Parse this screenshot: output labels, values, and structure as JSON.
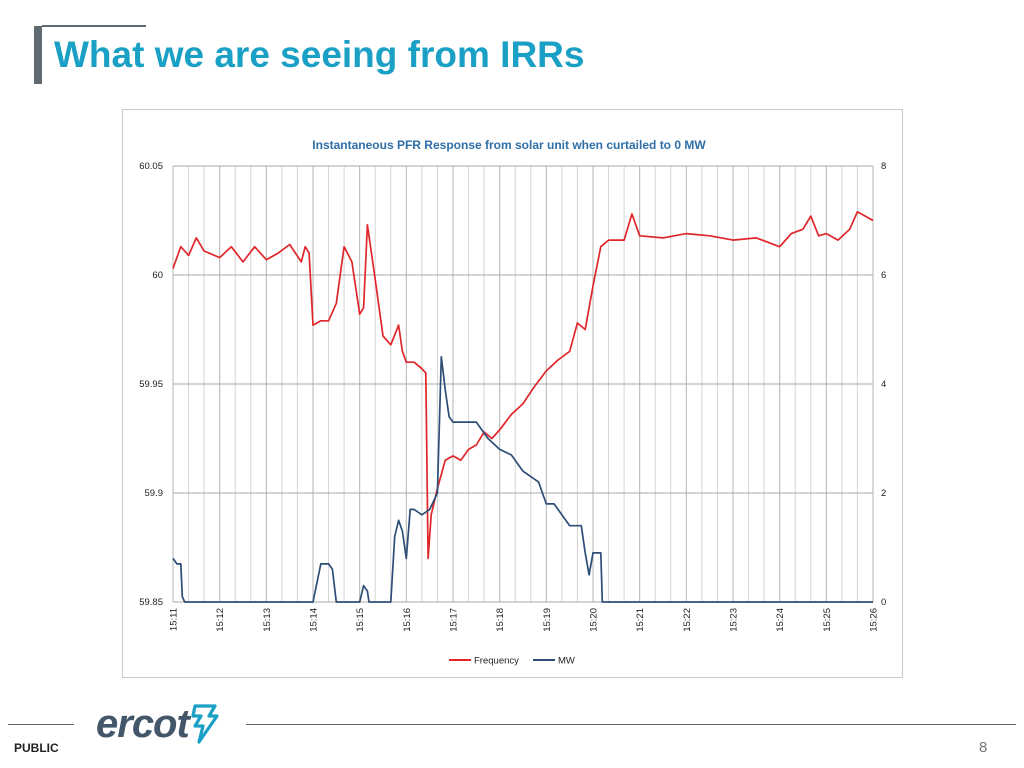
{
  "slide": {
    "title": "What we are seeing from IRRs",
    "footer_label": "PUBLIC",
    "page_number": "8",
    "logo_text": "ercot",
    "colors": {
      "title": "#1aa0c4",
      "frequency": "#e0262a",
      "mw": "#2c4e77"
    }
  },
  "chart_data": {
    "type": "line",
    "title": "Instantaneous PFR Response from solar unit when curtailed to 0 MW",
    "x_ticks": [
      "15:11",
      "15:12",
      "15:13",
      "15:14",
      "15:15",
      "15:16",
      "15:17",
      "15:18",
      "15:19",
      "15:20",
      "15:21",
      "15:22",
      "15:23",
      "15:24",
      "15:25",
      "15:26"
    ],
    "x_range_minutes": [
      "15:11",
      "15:26"
    ],
    "y_left": {
      "range": [
        59.85,
        60.05
      ],
      "ticks": [
        "59.85",
        "59.9",
        "59.95",
        "60",
        "60.05"
      ]
    },
    "y_right": {
      "range": [
        0,
        8
      ],
      "ticks": [
        "0",
        "2",
        "4",
        "6",
        "8"
      ]
    },
    "grid": true,
    "legend": {
      "position": "bottom",
      "entries": [
        "Frequency",
        "MW"
      ]
    },
    "series": [
      {
        "name": "Frequency",
        "axis": "left",
        "points": [
          [
            "15:11:00",
            60.003
          ],
          [
            "15:11:10",
            60.013
          ],
          [
            "15:11:20",
            60.009
          ],
          [
            "15:11:30",
            60.017
          ],
          [
            "15:11:40",
            60.011
          ],
          [
            "15:12:00",
            60.008
          ],
          [
            "15:12:15",
            60.013
          ],
          [
            "15:12:30",
            60.006
          ],
          [
            "15:12:45",
            60.013
          ],
          [
            "15:13:00",
            60.007
          ],
          [
            "15:13:15",
            60.01
          ],
          [
            "15:13:30",
            60.014
          ],
          [
            "15:13:45",
            60.006
          ],
          [
            "15:13:50",
            60.013
          ],
          [
            "15:13:55",
            60.01
          ],
          [
            "15:14:00",
            59.977
          ],
          [
            "15:14:10",
            59.979
          ],
          [
            "15:14:20",
            59.979
          ],
          [
            "15:14:30",
            59.987
          ],
          [
            "15:14:40",
            60.013
          ],
          [
            "15:14:50",
            60.006
          ],
          [
            "15:15:00",
            59.982
          ],
          [
            "15:15:05",
            59.985
          ],
          [
            "15:15:10",
            60.023
          ],
          [
            "15:15:20",
            59.998
          ],
          [
            "15:15:30",
            59.972
          ],
          [
            "15:15:40",
            59.968
          ],
          [
            "15:15:50",
            59.977
          ],
          [
            "15:15:55",
            59.965
          ],
          [
            "15:16:00",
            59.96
          ],
          [
            "15:16:10",
            59.96
          ],
          [
            "15:16:20",
            59.957
          ],
          [
            "15:16:25",
            59.955
          ],
          [
            "15:16:28",
            59.87
          ],
          [
            "15:16:32",
            59.89
          ],
          [
            "15:16:40",
            59.902
          ],
          [
            "15:16:50",
            59.915
          ],
          [
            "15:17:00",
            59.917
          ],
          [
            "15:17:10",
            59.915
          ],
          [
            "15:17:20",
            59.92
          ],
          [
            "15:17:30",
            59.922
          ],
          [
            "15:17:40",
            59.928
          ],
          [
            "15:17:50",
            59.925
          ],
          [
            "15:18:00",
            59.929
          ],
          [
            "15:18:15",
            59.936
          ],
          [
            "15:18:30",
            59.941
          ],
          [
            "15:18:45",
            59.949
          ],
          [
            "15:19:00",
            59.956
          ],
          [
            "15:19:15",
            59.961
          ],
          [
            "15:19:30",
            59.965
          ],
          [
            "15:19:40",
            59.978
          ],
          [
            "15:19:50",
            59.975
          ],
          [
            "15:20:00",
            59.995
          ],
          [
            "15:20:10",
            60.013
          ],
          [
            "15:20:20",
            60.016
          ],
          [
            "15:20:40",
            60.016
          ],
          [
            "15:20:50",
            60.028
          ],
          [
            "15:21:00",
            60.018
          ],
          [
            "15:21:30",
            60.017
          ],
          [
            "15:22:00",
            60.019
          ],
          [
            "15:22:30",
            60.018
          ],
          [
            "15:23:00",
            60.016
          ],
          [
            "15:23:30",
            60.017
          ],
          [
            "15:24:00",
            60.013
          ],
          [
            "15:24:15",
            60.019
          ],
          [
            "15:24:30",
            60.021
          ],
          [
            "15:24:40",
            60.027
          ],
          [
            "15:24:50",
            60.018
          ],
          [
            "15:25:00",
            60.019
          ],
          [
            "15:25:15",
            60.016
          ],
          [
            "15:25:30",
            60.021
          ],
          [
            "15:25:40",
            60.029
          ],
          [
            "15:25:50",
            60.027
          ],
          [
            "15:26:00",
            60.025
          ]
        ]
      },
      {
        "name": "MW",
        "axis": "right",
        "points": [
          [
            "15:11:00",
            0.8
          ],
          [
            "15:11:05",
            0.7
          ],
          [
            "15:11:10",
            0.7
          ],
          [
            "15:11:12",
            0.1
          ],
          [
            "15:11:15",
            0
          ],
          [
            "15:14:00",
            0
          ],
          [
            "15:14:10",
            0.7
          ],
          [
            "15:14:20",
            0.7
          ],
          [
            "15:14:25",
            0.6
          ],
          [
            "15:14:30",
            0
          ],
          [
            "15:15:00",
            0
          ],
          [
            "15:15:05",
            0.3
          ],
          [
            "15:15:10",
            0.2
          ],
          [
            "15:15:12",
            0
          ],
          [
            "15:15:40",
            0
          ],
          [
            "15:15:45",
            1.2
          ],
          [
            "15:15:50",
            1.5
          ],
          [
            "15:15:55",
            1.3
          ],
          [
            "15:16:00",
            0.8
          ],
          [
            "15:16:05",
            1.7
          ],
          [
            "15:16:10",
            1.7
          ],
          [
            "15:16:20",
            1.6
          ],
          [
            "15:16:30",
            1.7
          ],
          [
            "15:16:40",
            2.0
          ],
          [
            "15:16:45",
            4.5
          ],
          [
            "15:16:50",
            3.9
          ],
          [
            "15:16:55",
            3.4
          ],
          [
            "15:17:00",
            3.3
          ],
          [
            "15:17:30",
            3.3
          ],
          [
            "15:17:45",
            3.0
          ],
          [
            "15:18:00",
            2.8
          ],
          [
            "15:18:15",
            2.7
          ],
          [
            "15:18:30",
            2.4
          ],
          [
            "15:18:50",
            2.2
          ],
          [
            "15:19:00",
            1.8
          ],
          [
            "15:19:10",
            1.8
          ],
          [
            "15:19:30",
            1.4
          ],
          [
            "15:19:45",
            1.4
          ],
          [
            "15:19:50",
            0.9
          ],
          [
            "15:19:55",
            0.5
          ],
          [
            "15:20:00",
            0.9
          ],
          [
            "15:20:10",
            0.9
          ],
          [
            "15:20:12",
            0
          ],
          [
            "15:26:00",
            0
          ]
        ]
      }
    ]
  }
}
